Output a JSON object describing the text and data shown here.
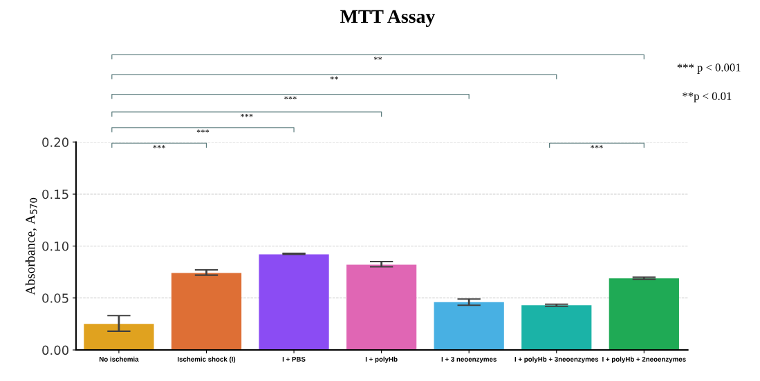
{
  "chart_data": {
    "type": "bar",
    "title": "MTT Assay",
    "ylabel": "Absorbance, A$_{570}$",
    "categories": [
      "No ischemia",
      "Ischemic shock (I)",
      "I + PBS",
      "I + polyHb",
      "I + 3 neoenzymes",
      "I + polyHb + 3neoenzymes",
      "I + polyHb + 2neoenzymes"
    ],
    "values": [
      0.025,
      0.074,
      0.092,
      0.082,
      0.046,
      0.043,
      0.069
    ],
    "errors": [
      [
        0.018,
        0.033
      ],
      [
        0.072,
        0.077
      ],
      [
        0.092,
        0.093
      ],
      [
        0.08,
        0.085
      ],
      [
        0.043,
        0.049
      ],
      [
        0.042,
        0.044
      ],
      [
        0.068,
        0.07
      ]
    ],
    "colors": [
      "#e0a21f",
      "#de6f35",
      "#8b4cf3",
      "#e066b4",
      "#48b0e3",
      "#1bb3a7",
      "#1faa55"
    ],
    "ylim": [
      0,
      0.2
    ],
    "yticks": [
      {
        "value": 0,
        "label": "0.00"
      },
      {
        "value": 0.05,
        "label": "0.05"
      },
      {
        "value": 0.1,
        "label": "0.10"
      },
      {
        "value": 0.15,
        "label": "0.15"
      },
      {
        "value": 0.2,
        "label": "0.20"
      }
    ],
    "grid": "y",
    "annotations": [
      "**",
      "**",
      "***",
      "***",
      "***",
      "***",
      "***",
      "*** p < 0.001",
      "**p < 0.01"
    ]
  }
}
